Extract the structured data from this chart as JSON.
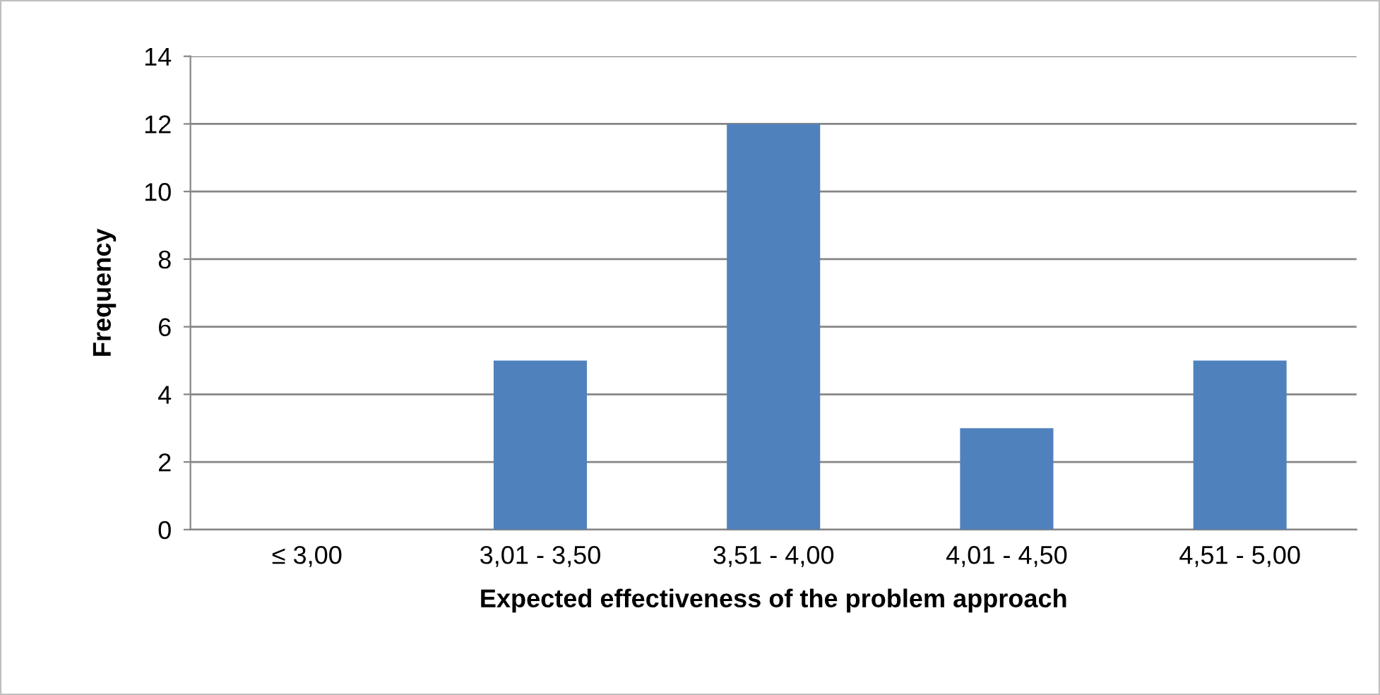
{
  "chart_data": {
    "type": "bar",
    "xlabel": "Expected effectiveness of the problem approach",
    "ylabel": "Frequency",
    "categories": [
      "≤ 3,00",
      "3,01 - 3,50",
      "3,51 - 4,00",
      "4,01 - 4,50",
      "4,51 - 5,00"
    ],
    "values": [
      0,
      5,
      12,
      3,
      5
    ],
    "color": "#4f81bd",
    "ylim": [
      0,
      14
    ],
    "yticks": [
      0,
      2,
      4,
      6,
      8,
      10,
      12,
      14
    ],
    "grid": "y",
    "legend": false
  }
}
